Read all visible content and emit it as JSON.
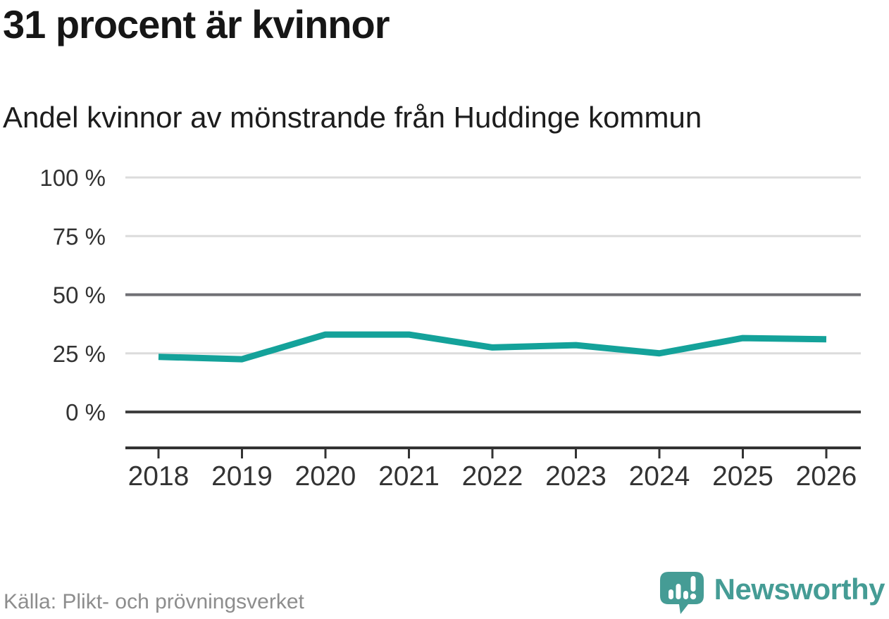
{
  "header": {
    "title": "31 procent är kvinnor",
    "subtitle": "Andel kvinnor av mönstrande från Huddinge kommun"
  },
  "chart_data": {
    "type": "line",
    "title": "31 procent är kvinnor",
    "subtitle": "Andel kvinnor av mönstrande från Huddinge kommun",
    "x": [
      "2018",
      "2019",
      "2020",
      "2021",
      "2022",
      "2023",
      "2024",
      "2025",
      "2026"
    ],
    "series": [
      {
        "name": "Andel kvinnor av mönstrande (%)",
        "values": [
          23.5,
          22.5,
          33,
          33,
          27.5,
          28.5,
          25,
          31.5,
          31
        ]
      }
    ],
    "ylim": [
      0,
      100
    ],
    "yticks": [
      0,
      25,
      50,
      75,
      100
    ],
    "ytick_labels": [
      "0 %",
      "25 %",
      "50 %",
      "75 %",
      "100 %"
    ],
    "xlabel": "",
    "ylabel": "",
    "grid": "horizontal",
    "legend": "none",
    "line_color": "#14a29a",
    "zero_line_color": "#3f3f3f",
    "mid_line_color": "#6f6f74",
    "grid_color": "#dcdcdc",
    "axis_color": "#333333"
  },
  "footer": {
    "source": "Källa: Plikt- och prövningsverket",
    "brand": "Newsworthy"
  },
  "colors": {
    "accent_teal": "#14a29a",
    "brand_teal": "#459c95",
    "text_dark": "#161616",
    "text_gray": "#8d8d8d"
  },
  "icons": {
    "newsworthy_icon": "speech-bubble-bar-chart-exclamation"
  }
}
